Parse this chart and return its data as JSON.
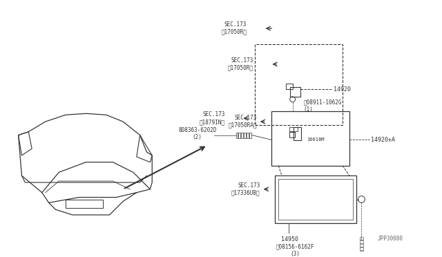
{
  "bg_color": "#ffffff",
  "fg_color": "#000000",
  "diagram_color": "#333333",
  "fig_width": 6.4,
  "fig_height": 3.72,
  "dpi": 100,
  "watermark": "JPP30080",
  "labels": {
    "sec173_17050R_1": "SEC.173\n】17050R〓",
    "sec173_17050R_2": "SEC.173\n】17050R〓",
    "sec173_18791N": "SEC.173\n】1879IN〓",
    "s08363": "ß08363-6202D\n(2)",
    "n08911": "Ⓞ08911-1062G\n(1)",
    "part14920": "14920",
    "part14920A": "14920+A",
    "part16618M": "16618M",
    "part14950": "14950",
    "sec173_17050RA": "SEC.173\n】17050RA〓",
    "sec173_17336UB": "SEC.173\n】17336UB〓",
    "b08156": "⒲08156-6162F\n(3)"
  },
  "font_size_label": 5.5,
  "font_size_part": 6.0,
  "font_size_wm": 5.5
}
